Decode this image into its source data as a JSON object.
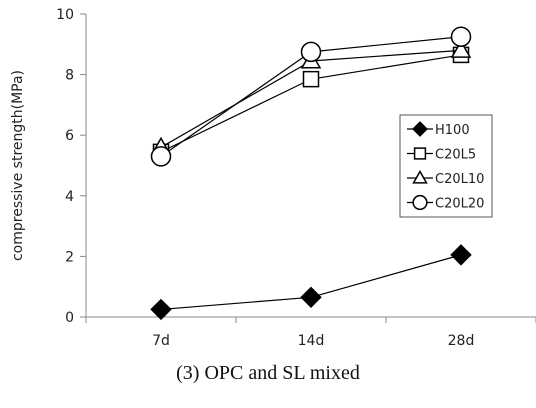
{
  "chart_data": {
    "type": "line",
    "categories": [
      "7d",
      "14d",
      "28d"
    ],
    "ylabel": "compressive strength(MPa)",
    "ylim": [
      0,
      10
    ],
    "yticks": [
      0,
      2,
      4,
      6,
      8,
      10
    ],
    "grid": false,
    "legend_position": "right",
    "series": [
      {
        "name": "H100",
        "marker": "diamond",
        "values": [
          0.25,
          0.65,
          2.05
        ]
      },
      {
        "name": "C20L5",
        "marker": "square",
        "values": [
          5.45,
          7.85,
          8.65
        ]
      },
      {
        "name": "C20L10",
        "marker": "triangle",
        "values": [
          5.6,
          8.45,
          8.8
        ]
      },
      {
        "name": "C20L20",
        "marker": "circle",
        "values": [
          5.3,
          8.75,
          9.25
        ]
      }
    ]
  },
  "caption": "(3) OPC and SL mixed"
}
